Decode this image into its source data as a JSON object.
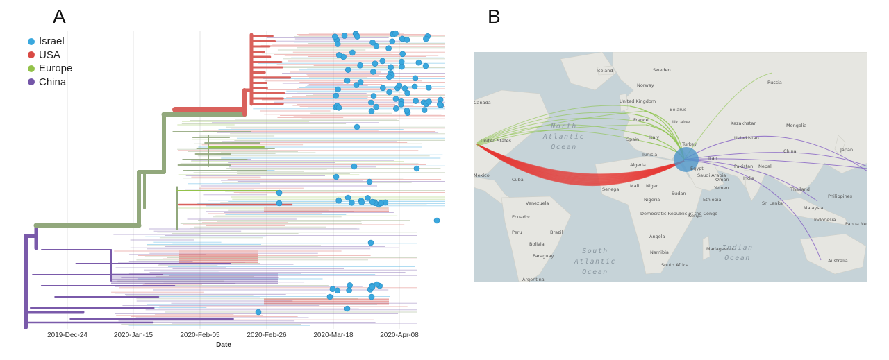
{
  "panels": {
    "a_letter": "A",
    "b_letter": "B"
  },
  "chart_data": [
    {
      "type": "line",
      "subtype": "phylogenetic-time-tree",
      "xlabel": "Date",
      "ylabel": "",
      "x_ticks": [
        "2019-Dec-24",
        "2020-Jan-15",
        "2020-Feb-05",
        "2020-Feb-26",
        "2020-Mar-18",
        "2020-Apr-08"
      ],
      "grid": "vertical",
      "legend_placement": "top-left",
      "legend": [
        {
          "name": "Israel",
          "color": "#3aa8de"
        },
        {
          "name": "USA",
          "color": "#d94a44"
        },
        {
          "name": "Europe",
          "color": "#93c24a"
        },
        {
          "name": "China",
          "color": "#7456a8"
        }
      ]
    },
    {
      "type": "map",
      "subtype": "transmission-flows",
      "hub": "Israel",
      "flows": [
        {
          "origin": "United States",
          "color": "#e53935",
          "weight": "high"
        },
        {
          "origin": "United Kingdom",
          "color": "#8bc34a",
          "weight": "medium"
        },
        {
          "origin": "France",
          "color": "#8bc34a",
          "weight": "medium"
        },
        {
          "origin": "Spain",
          "color": "#8bc34a",
          "weight": "low"
        },
        {
          "origin": "Italy",
          "color": "#8bc34a",
          "weight": "low"
        },
        {
          "origin": "Russia",
          "color": "#8bc34a",
          "weight": "low"
        },
        {
          "origin": "China",
          "color": "#7e57c2",
          "weight": "low"
        },
        {
          "origin": "Australia",
          "color": "#7e57c2",
          "weight": "low"
        },
        {
          "origin": "Philippines",
          "color": "#7e57c2",
          "weight": "low"
        }
      ],
      "place_labels": {
        "countries": [
          "Iceland",
          "Sweden",
          "Norway",
          "Russia",
          "United Kingdom",
          "Belarus",
          "Ukraine",
          "France",
          "Kazakhstan",
          "Mongolia",
          "Spain",
          "Italy",
          "Turkey",
          "Uzbekistan",
          "China",
          "Japan",
          "Tunisia",
          "Iran",
          "Pakistan",
          "Nepal",
          "Algeria",
          "Egypt",
          "Saudi Arabia",
          "Oman",
          "India",
          "Mexico",
          "Cuba",
          "Mali",
          "Niger",
          "Senegal",
          "Yemen",
          "Thailand",
          "Sudan",
          "Philippines",
          "Venezuela",
          "Nigeria",
          "Ethiopia",
          "Sri Lanka",
          "Malaysia",
          "Ecuador",
          "Democratic Republic of the Congo",
          "Kenya",
          "Indonesia",
          "Papua New Guinea",
          "Brazil",
          "Peru",
          "Angola",
          "Bolivia",
          "Madagascar",
          "Paraguay",
          "Namibia",
          "South Africa",
          "Australia",
          "Argentina",
          "United States",
          "Canada"
        ],
        "oceans": [
          "North Atlantic Ocean",
          "South Atlantic Ocean",
          "Indian Ocean"
        ]
      }
    }
  ]
}
